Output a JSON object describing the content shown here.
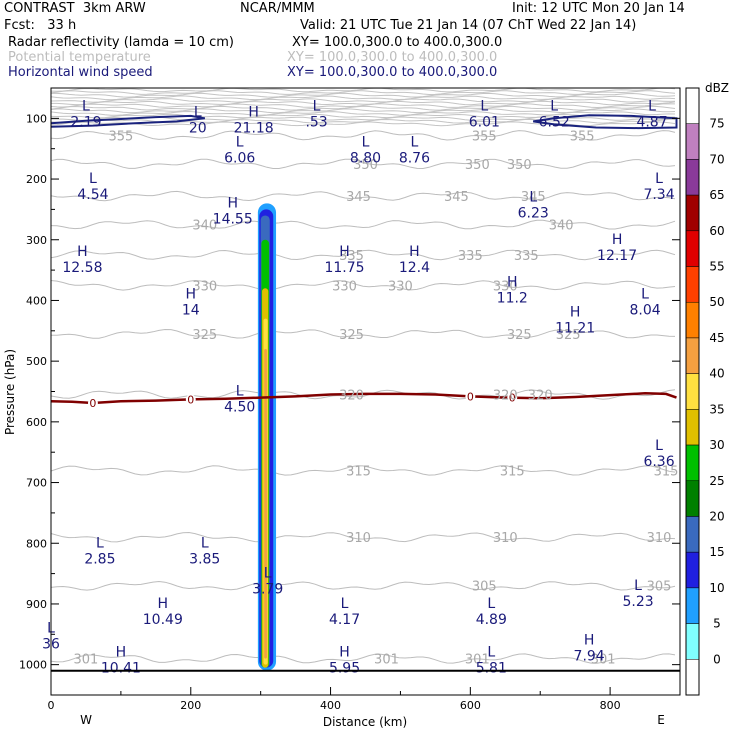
{
  "header": {
    "title": "CONTRAST  3km ARW",
    "source": "NCAR/MMM",
    "init": "Init: 12 UTC Mon 20 Jan 14",
    "fcst": "Fcst:   33 h",
    "valid": "Valid: 21 UTC Tue 21 Jan 14 (07 ChT Wed 22 Jan 14)",
    "field1": "Radar reflectivity (lamda = 10 cm)",
    "field1_xy": "XY= 100.0,300.0 to 400.0,300.0",
    "field2": "Potential temperature",
    "field2_xy": "XY= 100.0,300.0 to 400.0,300.0",
    "field3": "Horizontal wind speed",
    "field3_xy": "XY= 100.0,300.0 to 400.0,300.0"
  },
  "colors": {
    "theta": "#bdbdbd",
    "wind_label": "#1a1a7a",
    "wind_contour": "#1a237e",
    "zero_line": "#800000"
  },
  "chart_data": {
    "type": "heatmap",
    "xlabel": "Distance (km)",
    "ylabel": "Pressure (hPa)",
    "xlim": [
      0,
      900
    ],
    "ylim": [
      1050,
      50
    ],
    "xticks": [
      0,
      200,
      400,
      600,
      800
    ],
    "yticks": [
      100,
      200,
      300,
      400,
      500,
      600,
      700,
      800,
      900,
      1000
    ],
    "x_end_labels": [
      "W",
      "E"
    ],
    "colorbar": {
      "unit": "dBZ",
      "levels": [
        "75",
        "70",
        "65",
        "60",
        "55",
        "50",
        "45",
        "40",
        "35",
        "30",
        "25",
        "20",
        "15",
        "10",
        "5",
        "0"
      ],
      "colors": [
        "#ffffff",
        "#c080c0",
        "#8a3a9a",
        "#a00000",
        "#e00000",
        "#ff4000",
        "#ff8000",
        "#f5a040",
        "#ffe040",
        "#e0c000",
        "#00c000",
        "#008000",
        "#3a6abf",
        "#2020e0",
        "#20a0ff",
        "#80ffff",
        "#ffffff"
      ]
    },
    "theta_contours": [
      {
        "label": "355",
        "values": [
          [
            100,
            355
          ],
          [
            620,
            355
          ],
          [
            760,
            355
          ]
        ]
      },
      {
        "label": "350",
        "values": [
          [
            450,
            350
          ],
          [
            610,
            350
          ],
          [
            670,
            350
          ]
        ]
      },
      {
        "label": "345",
        "values": [
          [
            440,
            345
          ],
          [
            580,
            345
          ],
          [
            690,
            345
          ]
        ]
      },
      {
        "label": "340",
        "values": [
          [
            220,
            340
          ],
          [
            730,
            340
          ]
        ]
      },
      {
        "label": "335",
        "values": [
          [
            430,
            335
          ],
          [
            600,
            335
          ],
          [
            680,
            335
          ]
        ]
      },
      {
        "label": "330",
        "values": [
          [
            220,
            330
          ],
          [
            420,
            330
          ],
          [
            500,
            330
          ],
          [
            650,
            330
          ]
        ]
      },
      {
        "label": "325",
        "values": [
          [
            220,
            325
          ],
          [
            430,
            325
          ],
          [
            670,
            325
          ],
          [
            740,
            325
          ]
        ]
      },
      {
        "label": "320",
        "values": [
          [
            430,
            320
          ],
          [
            650,
            320
          ],
          [
            700,
            320
          ]
        ]
      },
      {
        "label": "315",
        "values": [
          [
            440,
            315
          ],
          [
            660,
            315
          ],
          [
            880,
            315
          ]
        ]
      },
      {
        "label": "310",
        "values": [
          [
            440,
            310
          ],
          [
            650,
            310
          ],
          [
            870,
            310
          ]
        ]
      },
      {
        "label": "305",
        "values": [
          [
            620,
            305
          ],
          [
            870,
            305
          ]
        ]
      },
      {
        "label": "301",
        "values": [
          [
            50,
            301
          ],
          [
            480,
            301
          ],
          [
            610,
            301
          ],
          [
            790,
            301
          ]
        ]
      }
    ],
    "wind_highs": [
      {
        "x": 290,
        "p": 100,
        "value": "21.18"
      },
      {
        "x": 260,
        "p": 250,
        "value": "14.55"
      },
      {
        "x": 45,
        "p": 330,
        "value": "12.58"
      },
      {
        "x": 420,
        "p": 330,
        "value": "11.75"
      },
      {
        "x": 520,
        "p": 330,
        "value": "12.4"
      },
      {
        "x": 810,
        "p": 310,
        "value": "12.17"
      },
      {
        "x": 660,
        "p": 380,
        "value": "11.2"
      },
      {
        "x": 200,
        "p": 400,
        "value": "14"
      },
      {
        "x": 750,
        "p": 430,
        "value": "11.21"
      },
      {
        "x": 160,
        "p": 910,
        "value": "10.49"
      },
      {
        "x": 100,
        "p": 990,
        "value": "10.41"
      },
      {
        "x": 420,
        "p": 990,
        "value": "5.95"
      },
      {
        "x": 770,
        "p": 970,
        "value": "7.94"
      }
    ],
    "wind_lows": [
      {
        "x": 50,
        "p": 90,
        "value": "2.19"
      },
      {
        "x": 380,
        "p": 90,
        "value": ".53"
      },
      {
        "x": 620,
        "p": 90,
        "value": "6.01"
      },
      {
        "x": 720,
        "p": 90,
        "value": "6.52"
      },
      {
        "x": 860,
        "p": 90,
        "value": "4.87"
      },
      {
        "x": 210,
        "p": 100,
        "value": "20"
      },
      {
        "x": 270,
        "p": 150,
        "value": "6.06"
      },
      {
        "x": 450,
        "p": 150,
        "value": "8.80"
      },
      {
        "x": 520,
        "p": 150,
        "value": "8.76"
      },
      {
        "x": 60,
        "p": 210,
        "value": "4.54"
      },
      {
        "x": 690,
        "p": 240,
        "value": "6.23"
      },
      {
        "x": 870,
        "p": 210,
        "value": "7.34"
      },
      {
        "x": 850,
        "p": 400,
        "value": "8.04"
      },
      {
        "x": 270,
        "p": 560,
        "value": "4.50"
      },
      {
        "x": 870,
        "p": 650,
        "value": "6.36"
      },
      {
        "x": 70,
        "p": 810,
        "value": "2.85"
      },
      {
        "x": 220,
        "p": 810,
        "value": "3.85"
      },
      {
        "x": 310,
        "p": 860,
        "value": "3.79"
      },
      {
        "x": 420,
        "p": 910,
        "value": "4.17"
      },
      {
        "x": 630,
        "p": 910,
        "value": "4.89"
      },
      {
        "x": 840,
        "p": 880,
        "value": "5.23"
      },
      {
        "x": 0,
        "p": 950,
        "value": "36"
      },
      {
        "x": 630,
        "p": 990,
        "value": "5.81"
      }
    ],
    "zero_isotherm_label": "0",
    "zero_isotherm": [
      [
        0,
        566
      ],
      [
        30,
        567
      ],
      [
        60,
        569
      ],
      [
        100,
        566
      ],
      [
        150,
        565
      ],
      [
        200,
        563
      ],
      [
        250,
        562
      ],
      [
        300,
        560
      ],
      [
        350,
        558
      ],
      [
        400,
        555
      ],
      [
        450,
        554
      ],
      [
        500,
        554
      ],
      [
        550,
        555
      ],
      [
        600,
        558
      ],
      [
        650,
        560
      ],
      [
        700,
        561
      ],
      [
        750,
        559
      ],
      [
        800,
        556
      ],
      [
        850,
        553
      ],
      [
        880,
        554
      ],
      [
        895,
        560
      ]
    ],
    "reflectivity_columns": [
      {
        "dbz": 5,
        "x0": 296,
        "x1": 322,
        "ptop": 240,
        "pbot": 1010
      },
      {
        "dbz": 10,
        "x0": 298,
        "x1": 318,
        "ptop": 250,
        "pbot": 1005
      },
      {
        "dbz": 15,
        "x0": 300,
        "x1": 313,
        "ptop": 260,
        "pbot": 1005
      },
      {
        "dbz": 25,
        "x0": 301,
        "x1": 312,
        "ptop": 300,
        "pbot": 1005
      },
      {
        "dbz": 30,
        "x0": 302,
        "x1": 311,
        "ptop": 380,
        "pbot": 1005
      },
      {
        "dbz": 35,
        "x0": 304,
        "x1": 310,
        "ptop": 430,
        "pbot": 1000
      },
      {
        "dbz": 40,
        "x0": 305,
        "x1": 309,
        "ptop": 480,
        "pbot": 990
      }
    ],
    "wind_contours": [
      {
        "label": "20",
        "values": [
          [
            0,
            108
          ],
          [
            50,
            104
          ],
          [
            100,
            101
          ],
          [
            150,
            98
          ],
          [
            200,
            96
          ],
          [
            220,
            100
          ],
          [
            180,
            105
          ],
          [
            120,
            108
          ],
          [
            60,
            112
          ],
          [
            0,
            114
          ]
        ]
      },
      {
        "label": "20",
        "values": [
          [
            720,
            100
          ],
          [
            770,
            95
          ],
          [
            830,
            96
          ],
          [
            895,
            100
          ],
          [
            895,
            115
          ],
          [
            840,
            116
          ],
          [
            780,
            115
          ],
          [
            720,
            110
          ],
          [
            690,
            105
          ],
          [
            720,
            100
          ]
        ]
      }
    ]
  }
}
